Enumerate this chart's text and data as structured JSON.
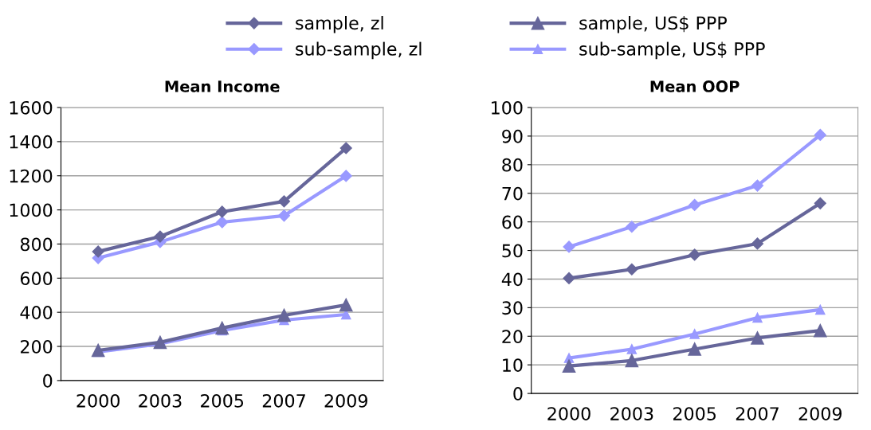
{
  "chart_data": [
    {
      "type": "line",
      "title": "Mean Income",
      "categories": [
        "2000",
        "2003",
        "2005",
        "2007",
        "2009"
      ],
      "ylim": [
        0,
        1600
      ],
      "yticks": [
        0,
        200,
        400,
        600,
        800,
        1000,
        1200,
        1400,
        1600
      ],
      "grid": "y",
      "legend": "top",
      "series": [
        {
          "name": "sample, zl",
          "color": "#66669a",
          "marker": "diamond",
          "values": [
            756,
            844,
            989,
            1050,
            1362
          ]
        },
        {
          "name": "sub-sample, zl",
          "color": "#9999ff",
          "marker": "diamond",
          "values": [
            718,
            812,
            928,
            966,
            1199
          ]
        },
        {
          "name": "sample, US$ PPP",
          "color": "#66669a",
          "marker": "triangle",
          "values": [
            177,
            224,
            308,
            382,
            443
          ]
        },
        {
          "name": "sub-sample, US$ PPP",
          "color": "#9999ff",
          "marker": "triangle",
          "values": [
            168,
            215,
            294,
            354,
            387
          ]
        }
      ]
    },
    {
      "type": "line",
      "title": "Mean OOP",
      "categories": [
        "2000",
        "2003",
        "2005",
        "2007",
        "2009"
      ],
      "ylim": [
        0,
        100
      ],
      "yticks": [
        0,
        10,
        20,
        30,
        40,
        50,
        60,
        70,
        80,
        90,
        100
      ],
      "grid": "y",
      "series": [
        {
          "color": "#66669a",
          "marker": "diamond",
          "values": [
            40.3,
            43.4,
            48.5,
            52.4,
            66.5
          ]
        },
        {
          "color": "#9999ff",
          "marker": "diamond",
          "values": [
            51.3,
            58.3,
            65.9,
            72.7,
            90.4
          ]
        },
        {
          "color": "#66669a",
          "marker": "triangle",
          "values": [
            9.6,
            11.5,
            15.5,
            19.4,
            22.0
          ]
        },
        {
          "color": "#9999ff",
          "marker": "triangle",
          "values": [
            12.4,
            15.5,
            20.8,
            26.5,
            29.3
          ]
        }
      ]
    }
  ]
}
